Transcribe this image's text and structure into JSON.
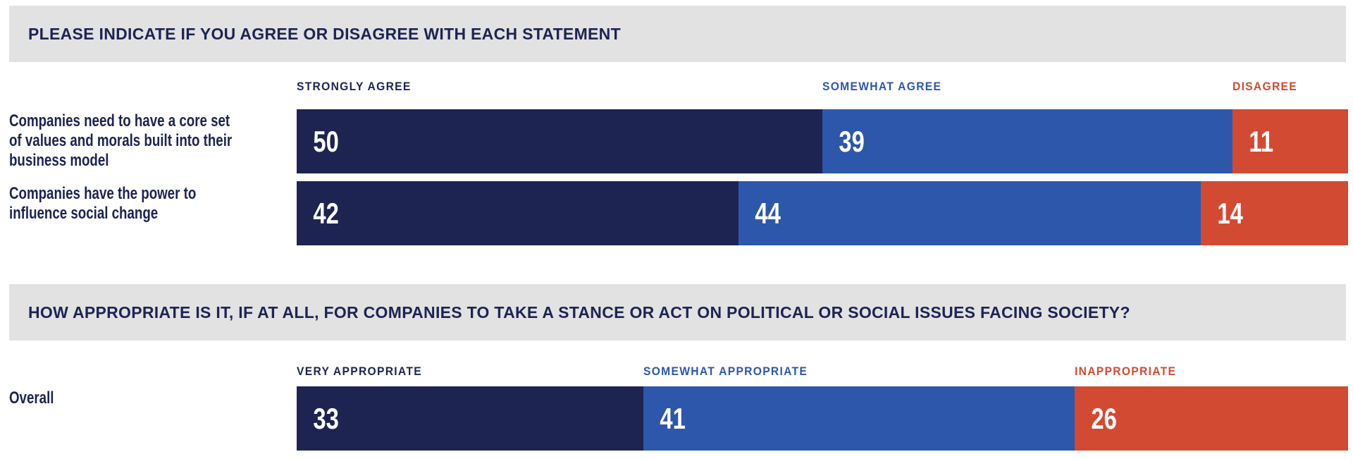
{
  "styles": {
    "navy": "#1D2452",
    "blue": "#2D57AB",
    "red": "#D34A32",
    "header_bg": "#E2E2E2",
    "value_text": "#FFFFFF",
    "background": "#FFFFFF"
  },
  "chart_data": [
    {
      "type": "bar",
      "orientation": "horizontal",
      "stacked": true,
      "title": "PLEASE INDICATE IF YOU AGREE OR DISAGREE WITH EACH STATEMENT",
      "xlim": [
        0,
        100
      ],
      "grid": false,
      "legend_position": "top",
      "data_labels": true,
      "categories": [
        "Companies need to have a core set of values and morals built into their business model",
        "Companies have the power to influence social change"
      ],
      "category_lines": [
        [
          "Companies need to have a core set",
          "of values and morals built into their",
          "business model"
        ],
        [
          "Companies have the power to",
          "influence social change"
        ]
      ],
      "series": [
        {
          "name": "STRONGLY AGREE",
          "color": "#1D2452",
          "values": [
            50,
            42
          ]
        },
        {
          "name": "SOMEWHAT AGREE",
          "color": "#2D57AB",
          "values": [
            39,
            44
          ]
        },
        {
          "name": "DISAGREE",
          "color": "#D34A32",
          "values": [
            11,
            14
          ]
        }
      ]
    },
    {
      "type": "bar",
      "orientation": "horizontal",
      "stacked": true,
      "title": "HOW APPROPRIATE IS IT, IF AT ALL, FOR COMPANIES TO TAKE A STANCE OR ACT ON POLITICAL OR SOCIAL ISSUES FACING SOCIETY?",
      "xlim": [
        0,
        100
      ],
      "grid": false,
      "legend_position": "top",
      "data_labels": true,
      "categories": [
        "Overall"
      ],
      "category_lines": [
        [
          "Overall"
        ]
      ],
      "series": [
        {
          "name": "VERY APPROPRIATE",
          "color": "#1D2452",
          "values": [
            33
          ]
        },
        {
          "name": "SOMEWHAT APPROPRIATE",
          "color": "#2D57AB",
          "values": [
            41
          ]
        },
        {
          "name": "INAPPROPRIATE",
          "color": "#D34A32",
          "values": [
            26
          ]
        }
      ]
    }
  ]
}
